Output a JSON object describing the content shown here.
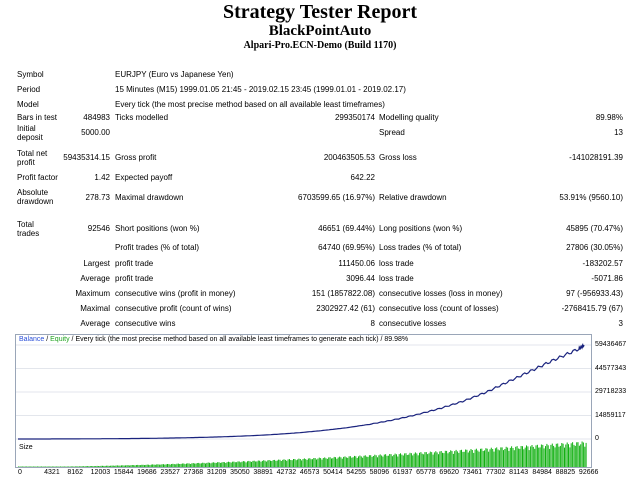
{
  "header": {
    "title": "Strategy Tester Report",
    "subtitle": "BlackPointAuto",
    "server": "Alpari-Pro.ECN-Demo (Build 1170)"
  },
  "report": {
    "symbol_label": "Symbol",
    "symbol": "EURJPY (Euro vs Japanese Yen)",
    "period_label": "Period",
    "period": "15 Minutes (M15) 1999.01.05 21:45 - 2019.02.15 23:45 (1999.01.01 - 2019.02.17)",
    "model_label": "Model",
    "model": "Every tick (the most precise method based on all available least timeframes)",
    "bars_label": "Bars in test",
    "bars": "484983",
    "ticks_label": "Ticks modelled",
    "ticks": "299350174",
    "quality_label": "Modelling quality",
    "quality": "89.98%",
    "deposit_label": "Initial deposit",
    "deposit": "5000.00",
    "spread_label": "Spread",
    "spread": "13",
    "netprofit_label": "Total net profit",
    "netprofit": "59435314.15",
    "grossprofit_label": "Gross profit",
    "grossprofit": "200463505.53",
    "grossloss_label": "Gross loss",
    "grossloss": "-141028191.39",
    "pf_label": "Profit factor",
    "pf": "1.42",
    "payoff_label": "Expected payoff",
    "payoff": "642.22",
    "absdd_label": "Absolute drawdown",
    "absdd": "278.73",
    "maxdd_label": "Maximal drawdown",
    "maxdd": "6703599.65 (16.97%)",
    "reldd_label": "Relative drawdown",
    "reldd": "53.91% (9560.10)",
    "trades_label": "Total trades",
    "trades": "92546",
    "short_label": "Short positions (won %)",
    "short": "46651 (69.44%)",
    "long_label": "Long positions (won %)",
    "long": "45895 (70.47%)",
    "ptrades_label": "Profit trades (% of total)",
    "ptrades": "64740 (69.95%)",
    "ltrades_label": "Loss trades (% of total)",
    "ltrades": "27806 (30.05%)",
    "largest_label": "Largest",
    "largest_profit_label": "profit trade",
    "largest_profit": "111450.06",
    "largest_loss_label": "loss trade",
    "largest_loss": "-183202.57",
    "average_label": "Average",
    "avg_profit_label": "profit trade",
    "avg_profit": "3096.44",
    "avg_loss_label": "loss trade",
    "avg_loss": "-5071.86",
    "maximum_label": "Maximum",
    "max_wins_label": "consecutive wins (profit in money)",
    "max_wins": "151 (1857822.08)",
    "max_losses_label": "consecutive losses (loss in money)",
    "max_losses": "97 (-956933.43)",
    "maximal_label": "Maximal",
    "maximal_profit_label": "consecutive profit (count of wins)",
    "maximal_profit": "2302927.42 (61)",
    "maximal_loss_label": "consecutive loss (count of losses)",
    "maximal_loss": "-2768415.79 (67)",
    "average2_label": "Average",
    "avg_wins_label": "consecutive wins",
    "avg_wins": "8",
    "avg_losses_label": "consecutive losses",
    "avg_losses": "3"
  },
  "chart_legend": {
    "balance": "Balance",
    "sep1": " / ",
    "equity": "Equity",
    "rest": " / Every tick (the most precise method based on all available least timeframes to generate each tick) / 89.98%",
    "size": "Size"
  },
  "colors": {
    "balance": "#1a237e",
    "equity": "#1fa31f",
    "size_bars": "#12b012"
  },
  "chart_data": {
    "type": "line",
    "y_ticks": [
      "59436467",
      "44577343",
      "29718233",
      "14859117",
      "0"
    ],
    "x_ticks": [
      "0",
      "4321",
      "8162",
      "12003",
      "15844",
      "19686",
      "23527",
      "27368",
      "31209",
      "35050",
      "38891",
      "42732",
      "46573",
      "50414",
      "54255",
      "58096",
      "61937",
      "65778",
      "69620",
      "73461",
      "77302",
      "81143",
      "84984",
      "88825",
      "92666"
    ],
    "ylim": [
      0,
      59436467
    ],
    "xlim": [
      0,
      94000
    ],
    "series": [
      {
        "name": "Balance",
        "x": [
          0,
          4321,
          8162,
          12003,
          15844,
          19686,
          23527,
          27368,
          31209,
          35050,
          38891,
          42732,
          46573,
          50414,
          54255,
          58096,
          61937,
          65778,
          69620,
          73461,
          77302,
          81143,
          84984,
          88825,
          92666,
          93500
        ],
        "values": [
          0,
          20000,
          60000,
          120000,
          200000,
          320000,
          500000,
          750000,
          1100000,
          1550000,
          2150000,
          2950000,
          4000000,
          5400000,
          7100000,
          9300000,
          12000000,
          15300000,
          19200000,
          23800000,
          29500000,
          36500000,
          43500000,
          50500000,
          57000000,
          59436467
        ]
      }
    ]
  }
}
